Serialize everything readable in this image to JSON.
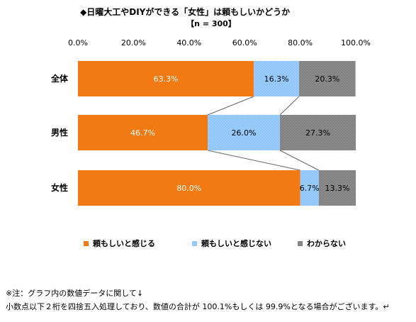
{
  "chart_data": {
    "type": "bar",
    "stacked": true,
    "orientation": "horizontal",
    "title": "◆日曜大工やDIYができる「女性」は頼もしいかどうか",
    "subtitle": "【n = 300】",
    "xlim": [
      0,
      100
    ],
    "xticks": [
      "0.0%",
      "20.0%",
      "40.0%",
      "60.0%",
      "80.0%",
      "100.0%"
    ],
    "categories": [
      "全体",
      "男性",
      "女性"
    ],
    "series": [
      {
        "name": "頼もしいと感じる",
        "values": [
          63.3,
          46.7,
          80.0
        ],
        "labels": [
          "63.3%",
          "46.7%",
          "80.0%"
        ],
        "color": "#F37A12"
      },
      {
        "name": "頼もしいと感じない",
        "values": [
          16.3,
          26.0,
          6.7
        ],
        "labels": [
          "16.3%",
          "26.0%",
          "6.7%"
        ],
        "color": "#99CCFF"
      },
      {
        "name": "わからない",
        "values": [
          20.3,
          27.3,
          13.3
        ],
        "labels": [
          "20.3%",
          "27.3%",
          "13.3%"
        ],
        "color": "#8C8C8C"
      }
    ],
    "legend_position": "bottom",
    "grid": false
  },
  "notes": [
    "※注：グラフ内の数値データに関して↓",
    "小数点以下２桁を四捨五入処理しており、数値の合計が 100.1%もしくは 99.9%となる場合がございます。↵"
  ]
}
